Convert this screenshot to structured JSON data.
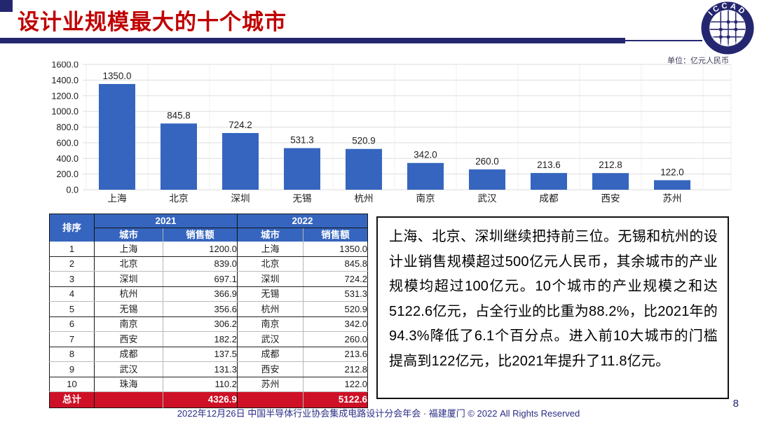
{
  "header": {
    "title": "设计业规模最大的十个城市",
    "unit_label": "单位：亿元人民币",
    "logo": {
      "acronym": "ICCAD",
      "ring_text": "中国半导体行业协会集成电路设计分会"
    }
  },
  "chart_data": {
    "type": "bar",
    "title": "",
    "xlabel": "",
    "ylabel": "",
    "unit": "亿元人民币",
    "categories": [
      "上海",
      "北京",
      "深圳",
      "无锡",
      "杭州",
      "南京",
      "武汉",
      "成都",
      "西安",
      "苏州"
    ],
    "values": [
      1350.0,
      845.8,
      724.2,
      531.3,
      520.9,
      342.0,
      260.0,
      213.6,
      212.8,
      122.0
    ],
    "value_labels": [
      "1350.0",
      "845.8",
      "724.2",
      "531.3",
      "520.9",
      "342.0",
      "260.0",
      "213.6",
      "212.8",
      "122.0"
    ],
    "ylim": [
      0,
      1600
    ],
    "ytick_step": 200,
    "ytick_labels": [
      "0.0",
      "200.0",
      "400.0",
      "600.0",
      "800.0",
      "1000.0",
      "1200.0",
      "1400.0",
      "1600.0"
    ],
    "grid": true,
    "legend": "none"
  },
  "table": {
    "rank_header": "排序",
    "year_headers": [
      "2021",
      "2022"
    ],
    "sub_headers": [
      "城市",
      "销售额"
    ],
    "rows": [
      {
        "rank": "1",
        "city_2021": "上海",
        "sales_2021": "1200.0",
        "city_2022": "上海",
        "sales_2022": "1350.0"
      },
      {
        "rank": "2",
        "city_2021": "北京",
        "sales_2021": "839.0",
        "city_2022": "北京",
        "sales_2022": "845.8"
      },
      {
        "rank": "3",
        "city_2021": "深圳",
        "sales_2021": "697.1",
        "city_2022": "深圳",
        "sales_2022": "724.2"
      },
      {
        "rank": "4",
        "city_2021": "杭州",
        "sales_2021": "366.9",
        "city_2022": "无锡",
        "sales_2022": "531.3"
      },
      {
        "rank": "5",
        "city_2021": "无锡",
        "sales_2021": "356.6",
        "city_2022": "杭州",
        "sales_2022": "520.9"
      },
      {
        "rank": "6",
        "city_2021": "南京",
        "sales_2021": "306.2",
        "city_2022": "南京",
        "sales_2022": "342.0"
      },
      {
        "rank": "7",
        "city_2021": "西安",
        "sales_2021": "182.2",
        "city_2022": "武汉",
        "sales_2022": "260.0"
      },
      {
        "rank": "8",
        "city_2021": "成都",
        "sales_2021": "137.5",
        "city_2022": "成都",
        "sales_2022": "213.6"
      },
      {
        "rank": "9",
        "city_2021": "武汉",
        "sales_2021": "131.3",
        "city_2022": "西安",
        "sales_2022": "212.8"
      },
      {
        "rank": "10",
        "city_2021": "珠海",
        "sales_2021": "110.2",
        "city_2022": "苏州",
        "sales_2022": "122.0"
      }
    ],
    "total": {
      "label": "总计",
      "sales_2021": "4326.9",
      "sales_2022": "5122.6"
    }
  },
  "commentary": "上海、北京、深圳继续把持前三位。无锡和杭州的设计业销售规模超过500亿元人民币，其余城市的产业规模均超过100亿元。10个城市的产业规模之和达5122.6亿元，占全行业的比重为88.2%，比2021年的94.3%降低了6.1个百分点。进入前10大城市的门槛提高到122亿元，比2021年提升了11.8亿元。",
  "footer": {
    "text": "2022年12月26日 中国半导体行业协会集成电路设计分会年会 · 福建厦门 © 2022 All Rights Reserved",
    "page_number": "8"
  },
  "colors": {
    "title_red": "#C00000",
    "navy": "#24276F",
    "bar_blue": "#3565BE",
    "table_header_blue": "#3565BE",
    "total_row_red": "#CE1126",
    "gridline": "#DEDEDE",
    "footer_navy": "#2B2D86"
  }
}
